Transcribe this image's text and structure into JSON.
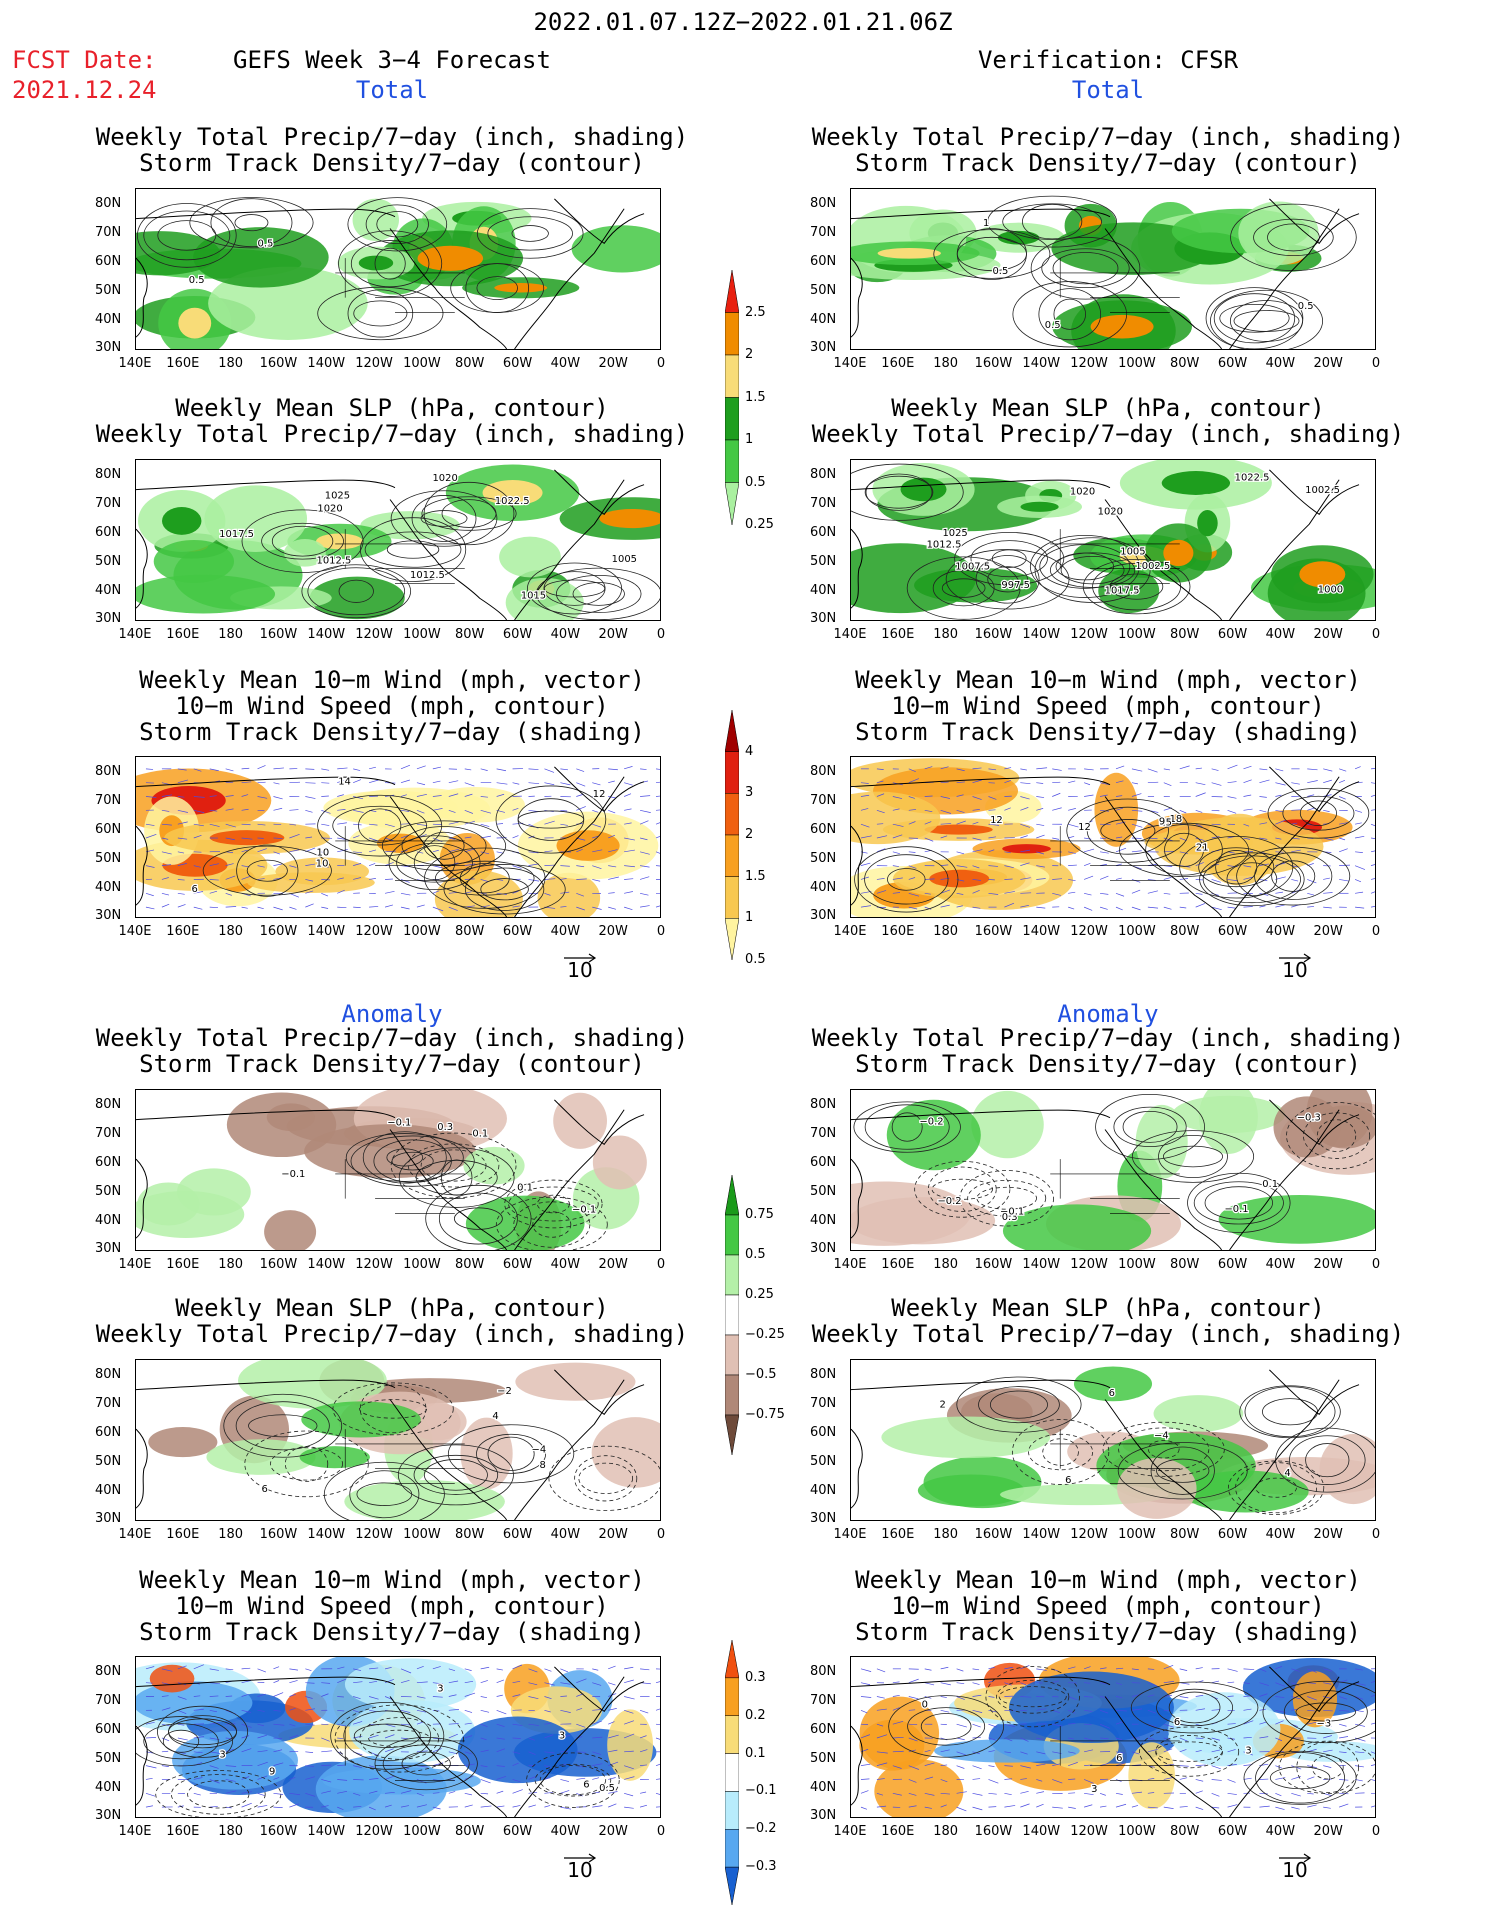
{
  "header": {
    "period": "2022.01.07.12Z−2022.01.21.06Z",
    "fcst_label": "FCST Date:",
    "fcst_date": "2021.12.24",
    "left_title": "GEFS Week 3−4 Forecast",
    "right_title": "Verification: CFSR"
  },
  "sections": {
    "total": "Total",
    "anomaly": "Anomaly"
  },
  "panel_titles": {
    "precip_storm": [
      "Weekly Total Precip/7−day (inch, shading)",
      "Storm Track Density/7−day (contour)"
    ],
    "slp_precip": [
      "Weekly Mean SLP (hPa, contour)",
      "Weekly Total Precip/7−day (inch, shading)"
    ],
    "wind_storm": [
      "Weekly Mean 10−m Wind (mph, vector)",
      "10−m Wind Speed (mph, contour)",
      "Storm Track Density/7−day (shading)"
    ]
  },
  "axes": {
    "lat_labels": [
      "80N",
      "70N",
      "60N",
      "50N",
      "40N",
      "30N"
    ],
    "lon_labels": [
      "140E",
      "160E",
      "180",
      "160W",
      "140W",
      "120W",
      "100W",
      "80W",
      "60W",
      "40W",
      "20W",
      "0"
    ]
  },
  "vector_reference": "10",
  "colorbars": {
    "precip_total": {
      "ticks": [
        "2.5",
        "2",
        "1.5",
        "1",
        "0.5",
        "0.25"
      ],
      "colors": [
        "#e82010",
        "#f08c00",
        "#f8dc78",
        "#1e9e1e",
        "#44c844",
        "#aaf0a0"
      ]
    },
    "storm_total": {
      "ticks": [
        "4",
        "3",
        "2",
        "1.5",
        "1",
        "0.5"
      ],
      "colors": [
        "#a00000",
        "#e02010",
        "#f06010",
        "#f8a020",
        "#f8c850",
        "#fff4a0"
      ]
    },
    "precip_anomaly": {
      "ticks": [
        "0.75",
        "0.5",
        "0.25",
        "−0.25",
        "−0.5",
        "−0.75"
      ],
      "colors": [
        "#1a9a1a",
        "#44c844",
        "#b4f0a8",
        "#ffffff",
        "#e0c0b4",
        "#b08878",
        "#6e4a3a"
      ]
    },
    "storm_anomaly": {
      "ticks": [
        "0.3",
        "0.2",
        "0.1",
        "−0.1",
        "−0.2",
        "−0.3"
      ],
      "colors": [
        "#f05010",
        "#f8a020",
        "#f8dc78",
        "#ffffff",
        "#b8ecfc",
        "#58a8f0",
        "#1860d0"
      ]
    }
  },
  "contour_labels": {
    "r1c0": [
      "0.5",
      "0.5"
    ],
    "r1c1": [
      "0.5",
      "0.5",
      "1",
      "0.5"
    ],
    "r2c0": [
      "1020",
      "1012.5",
      "1015",
      "1020",
      "1017.5",
      "1025",
      "1022.5",
      "1012.5",
      "1005"
    ],
    "r2c1": [
      "1017.5",
      "1005",
      "1002.5",
      "1000",
      "1022.5",
      "1020",
      "1025",
      "1007.5",
      "1020",
      "997.5",
      "1002.5",
      "1012.5"
    ],
    "r3c0": [
      "10",
      "10",
      "12",
      "14",
      "6"
    ],
    "r3c1": [
      "12",
      "18",
      "12",
      "15",
      "9",
      "21"
    ],
    "r4c0": [
      "0.3",
      "−0.1",
      "−0.1",
      "0.1",
      "−0.1",
      "0.1"
    ],
    "r4c1": [
      "−0.1",
      "−0.2",
      "0.3",
      "−0.2",
      "−0.3",
      "0.1",
      "−0.1"
    ],
    "r5c0": [
      "−2",
      "6",
      "8",
      "4",
      "−4"
    ],
    "r5c1": [
      "4",
      "6",
      "−4",
      "2",
      "6"
    ],
    "r6c0": [
      "3",
      "3",
      "9",
      "6",
      "3",
      "0.5"
    ],
    "r6c1": [
      "3",
      "6",
      "3",
      "6",
      "0",
      "−3"
    ]
  }
}
